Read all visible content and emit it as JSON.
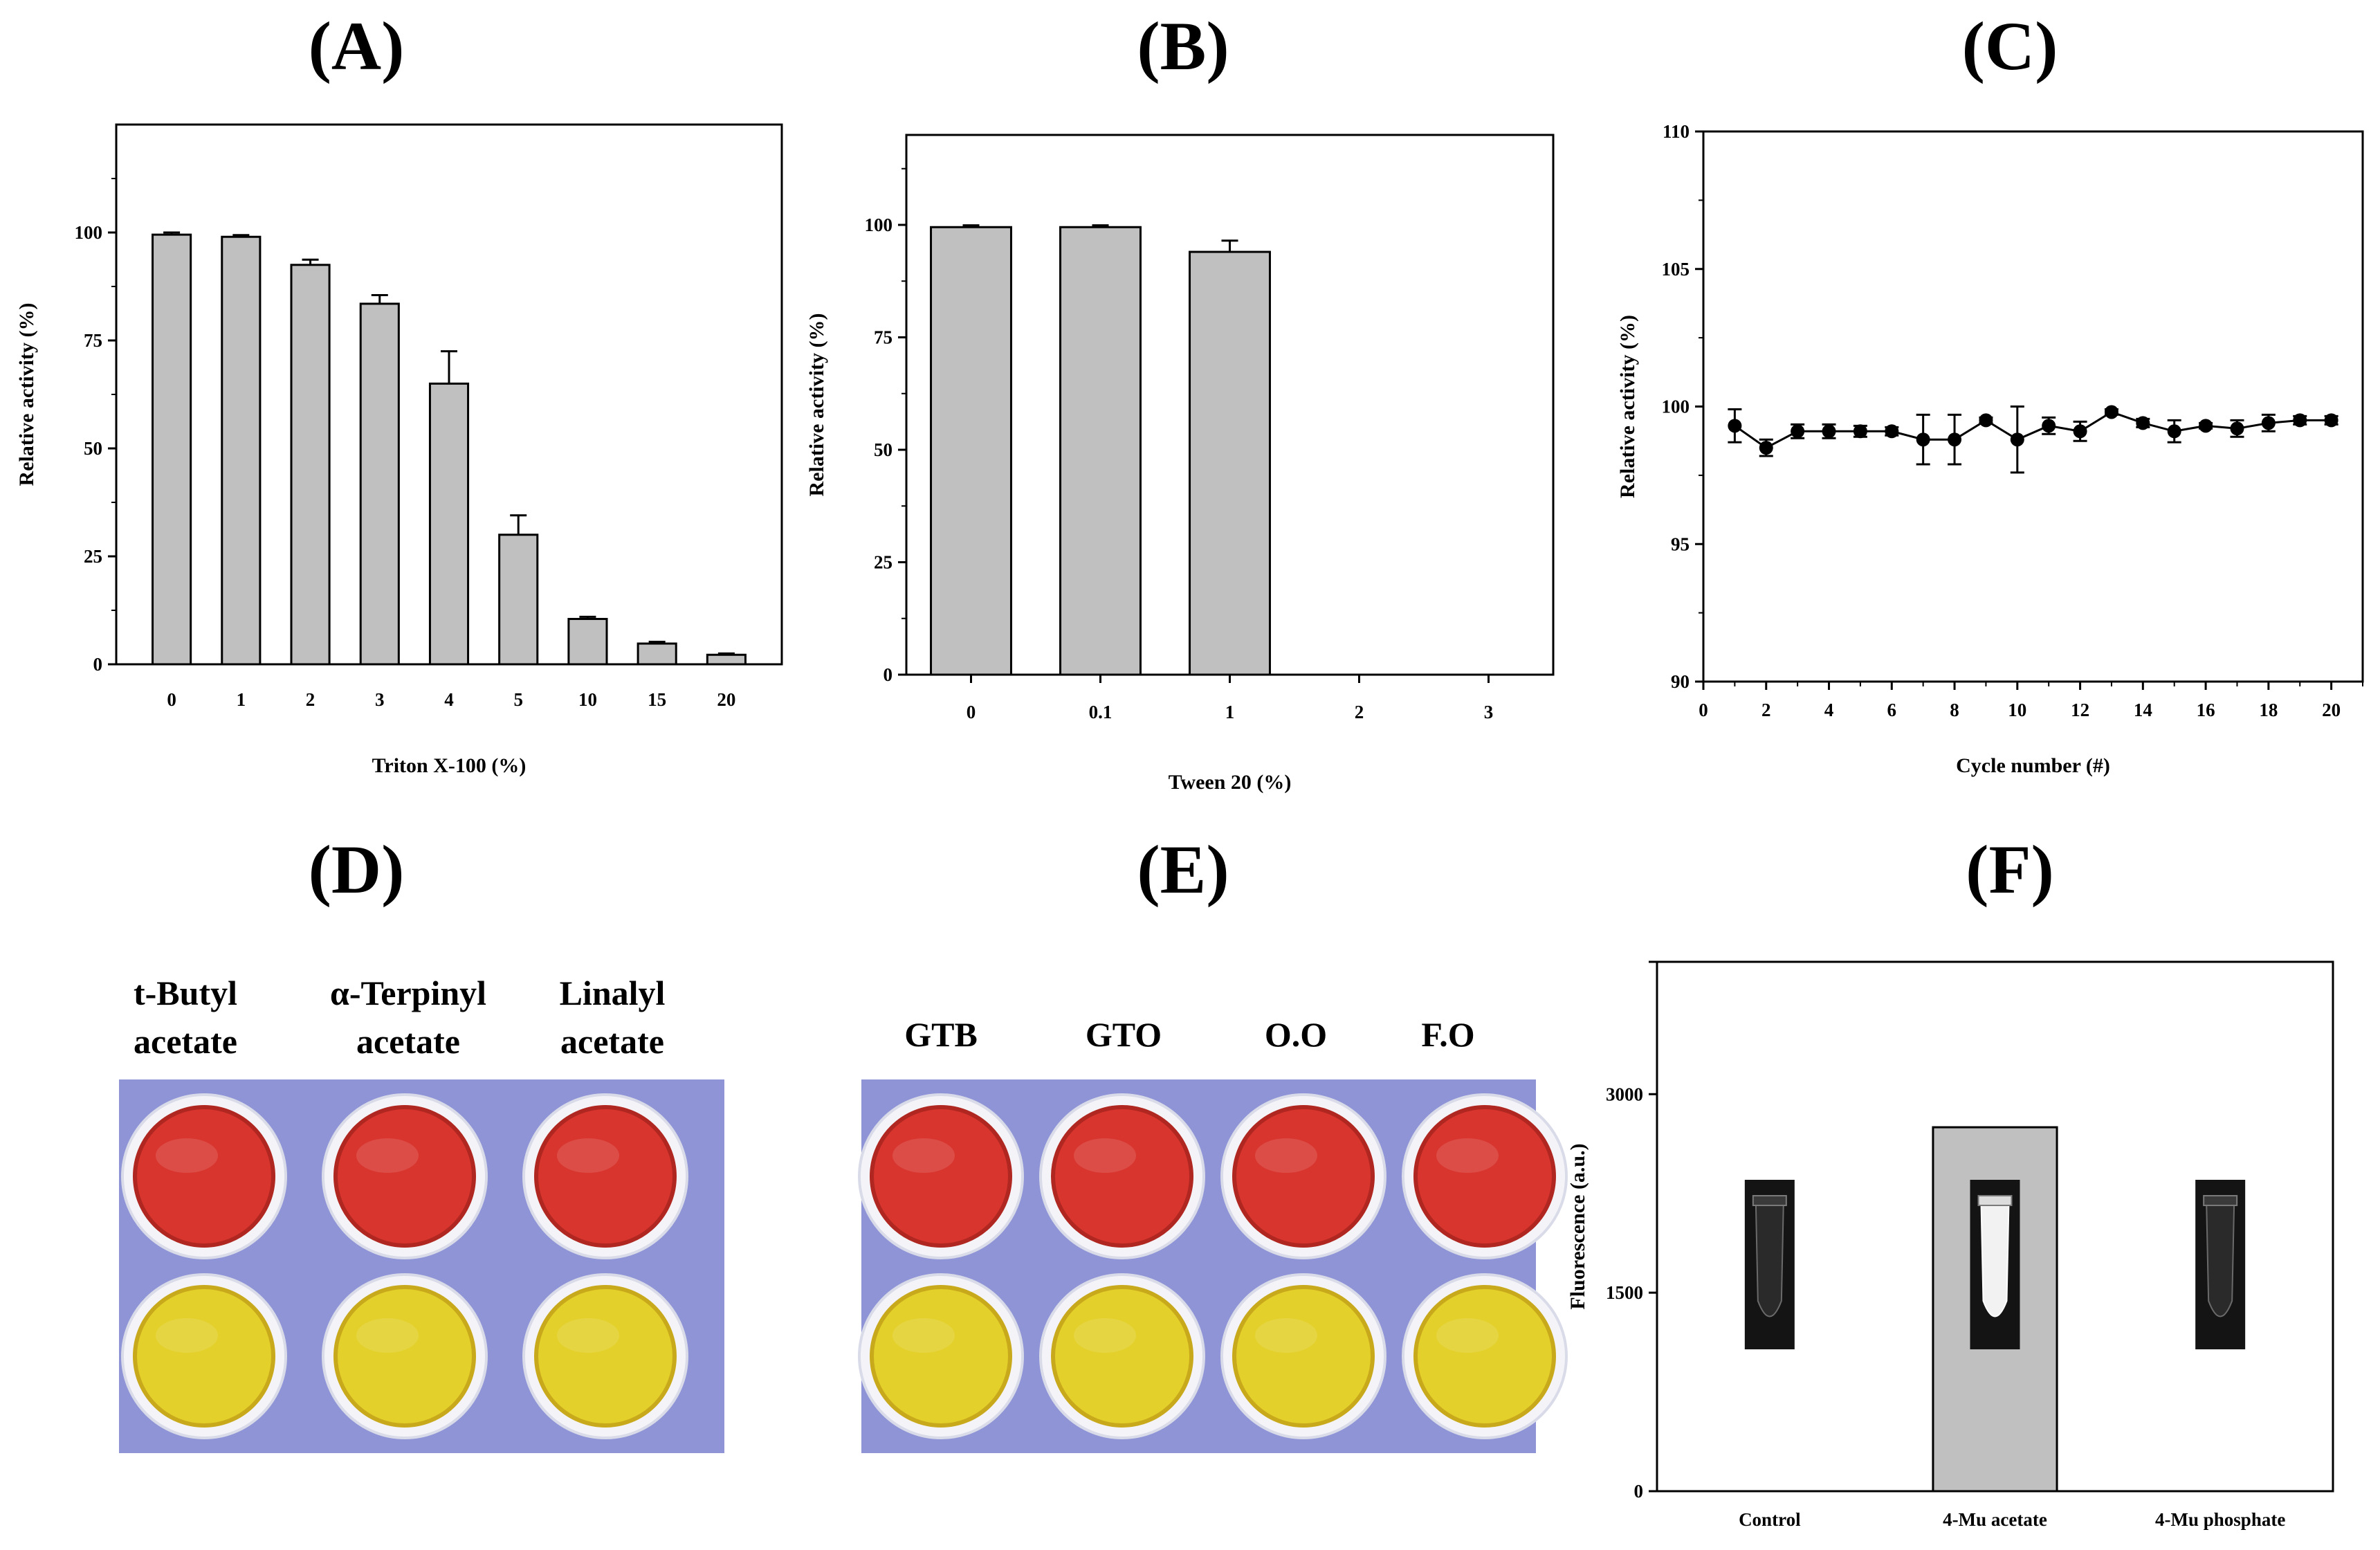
{
  "panel_labels": [
    "(A)",
    "(B)",
    "(C)",
    "(D)",
    "(E)",
    "(F)"
  ],
  "colors": {
    "bar_fill": "#c0c0c0",
    "bar_stroke": "#000000",
    "marker": "#000000",
    "photo_bg": "#8e94d6",
    "well_red": "#d8352e",
    "well_yellow": "#e3d02a"
  },
  "chart_data": [
    {
      "id": "A",
      "type": "bar",
      "categories": [
        "0",
        "1",
        "2",
        "3",
        "4",
        "5",
        "10",
        "15",
        "20"
      ],
      "values": [
        99.5,
        99,
        92.5,
        83.5,
        65,
        30,
        10.5,
        4.8,
        2.2
      ],
      "errors": [
        0.5,
        0.4,
        1.2,
        2.0,
        7.5,
        4.5,
        0.5,
        0.4,
        0.3
      ],
      "xlabel": "Triton X-100 (%)",
      "ylabel": "Relative activity (%)",
      "ylim": [
        0,
        125
      ],
      "yticks": [
        0,
        25,
        50,
        75,
        100
      ]
    },
    {
      "id": "B",
      "type": "bar",
      "categories": [
        "0",
        "0.1",
        "1",
        "2",
        "3"
      ],
      "values": [
        99.5,
        99.5,
        94,
        0,
        0
      ],
      "errors": [
        0.4,
        0.4,
        2.5,
        0,
        0
      ],
      "xlabel": "Tween 20 (%)",
      "ylabel": "Relative activity (%)",
      "ylim": [
        0,
        120
      ],
      "yticks": [
        0,
        25,
        50,
        75,
        100
      ]
    },
    {
      "id": "C",
      "type": "line",
      "x": [
        1,
        2,
        3,
        4,
        5,
        6,
        7,
        8,
        9,
        10,
        11,
        12,
        13,
        14,
        15,
        16,
        17,
        18,
        19,
        20
      ],
      "y": [
        99.3,
        98.5,
        99.1,
        99.1,
        99.1,
        99.1,
        98.8,
        98.8,
        99.5,
        98.8,
        99.3,
        99.1,
        99.8,
        99.4,
        99.1,
        99.3,
        99.2,
        99.4,
        99.5,
        99.5
      ],
      "errors": [
        0.6,
        0.3,
        0.25,
        0.25,
        0.2,
        0.15,
        0.9,
        0.9,
        0.1,
        1.2,
        0.3,
        0.35,
        0.1,
        0.15,
        0.4,
        0.1,
        0.3,
        0.3,
        0.15,
        0.15
      ],
      "xlabel": "Cycle number (#)",
      "ylabel": "Relative activity (%)",
      "xlim": [
        0,
        21
      ],
      "ylim": [
        90,
        110
      ],
      "xticks": [
        0,
        2,
        4,
        6,
        8,
        10,
        12,
        14,
        16,
        18,
        20
      ],
      "yticks": [
        90,
        95,
        100,
        105,
        110
      ]
    },
    {
      "id": "F",
      "type": "bar",
      "categories": [
        "Control",
        "4-Mu acetate",
        "4-Mu phosphate"
      ],
      "values": [
        0,
        2750,
        0
      ],
      "ylabel": "Fluorescence (a.u.)",
      "ylim": [
        0,
        4000
      ],
      "yticks": [
        0,
        1500,
        3000
      ]
    }
  ],
  "photos": {
    "D": {
      "labels": [
        [
          "t-Butyl",
          "acetate"
        ],
        [
          "α-Terpinyl",
          "acetate"
        ],
        [
          "Linalyl",
          "acetate"
        ]
      ]
    },
    "E": {
      "labels": [
        "GTB",
        "GTO",
        "O.O",
        "F.O"
      ]
    }
  }
}
